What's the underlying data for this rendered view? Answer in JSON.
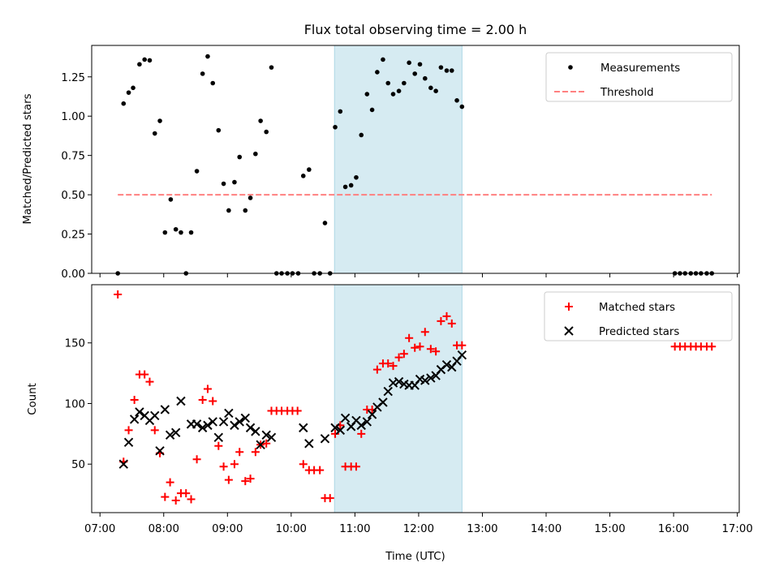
{
  "chart_data": {
    "type": "scatter",
    "title": "Flux total observing time = 2.00 h",
    "xlabel": "Time (UTC)",
    "x_unit": "hours UTC",
    "xlim": [
      6.87,
      17.03
    ],
    "xticks": [
      7,
      8,
      9,
      10,
      11,
      12,
      13,
      14,
      15,
      16,
      17
    ],
    "xtick_labels": [
      "07:00",
      "08:00",
      "09:00",
      "10:00",
      "11:00",
      "12:00",
      "13:00",
      "14:00",
      "15:00",
      "16:00",
      "17:00"
    ],
    "shaded_span": {
      "x0": 10.68,
      "x1": 12.68,
      "color": "#add8e6"
    },
    "panels": [
      {
        "id": "ratio",
        "ylabel": "Matched/Predicted stars",
        "ylim": [
          0,
          1.45
        ],
        "yticks": [
          0,
          0.25,
          0.5,
          0.75,
          1.0,
          1.25
        ],
        "ytick_labels": [
          "0.00",
          "0.25",
          "0.50",
          "0.75",
          "1.00",
          "1.25"
        ],
        "legend_position": "top-right",
        "series": [
          {
            "name": "Measurements",
            "marker": "dot",
            "color": "#000000",
            "points": [
              [
                7.28,
                0.0
              ],
              [
                7.37,
                1.08
              ],
              [
                7.45,
                1.15
              ],
              [
                7.52,
                1.18
              ],
              [
                7.62,
                1.33
              ],
              [
                7.7,
                1.36
              ],
              [
                7.78,
                1.355
              ],
              [
                7.86,
                0.89
              ],
              [
                7.94,
                0.97
              ],
              [
                8.02,
                0.26
              ],
              [
                8.11,
                0.47
              ],
              [
                8.19,
                0.28
              ],
              [
                8.27,
                0.26
              ],
              [
                8.35,
                0.0
              ],
              [
                8.43,
                0.26
              ],
              [
                8.52,
                0.65
              ],
              [
                8.61,
                1.27
              ],
              [
                8.69,
                1.38
              ],
              [
                8.77,
                1.21
              ],
              [
                8.86,
                0.91
              ],
              [
                8.94,
                0.57
              ],
              [
                9.02,
                0.4
              ],
              [
                9.11,
                0.58
              ],
              [
                9.19,
                0.74
              ],
              [
                9.28,
                0.4
              ],
              [
                9.36,
                0.48
              ],
              [
                9.44,
                0.76
              ],
              [
                9.52,
                0.97
              ],
              [
                9.61,
                0.9
              ],
              [
                9.69,
                1.31
              ],
              [
                9.77,
                0.0
              ],
              [
                9.85,
                0.0
              ],
              [
                9.94,
                0.0
              ],
              [
                10.02,
                0.0
              ],
              [
                10.11,
                0.0
              ],
              [
                10.19,
                0.62
              ],
              [
                10.28,
                0.66
              ],
              [
                10.36,
                0.0
              ],
              [
                10.45,
                0.0
              ],
              [
                10.53,
                0.32
              ],
              [
                10.61,
                0.0
              ],
              [
                10.69,
                0.93
              ],
              [
                10.77,
                1.03
              ],
              [
                10.85,
                0.55
              ],
              [
                10.94,
                0.56
              ],
              [
                11.02,
                0.61
              ],
              [
                11.1,
                0.88
              ],
              [
                11.19,
                1.14
              ],
              [
                11.27,
                1.04
              ],
              [
                11.35,
                1.28
              ],
              [
                11.44,
                1.36
              ],
              [
                11.52,
                1.21
              ],
              [
                11.6,
                1.14
              ],
              [
                11.69,
                1.16
              ],
              [
                11.77,
                1.21
              ],
              [
                11.85,
                1.34
              ],
              [
                11.94,
                1.27
              ],
              [
                12.02,
                1.33
              ],
              [
                12.1,
                1.24
              ],
              [
                12.19,
                1.18
              ],
              [
                12.27,
                1.16
              ],
              [
                12.35,
                1.31
              ],
              [
                12.44,
                1.29
              ],
              [
                12.52,
                1.29
              ],
              [
                12.6,
                1.1
              ],
              [
                12.68,
                1.06
              ],
              [
                16.02,
                0.0
              ],
              [
                16.1,
                0.0
              ],
              [
                16.18,
                0.0
              ],
              [
                16.27,
                0.0
              ],
              [
                16.35,
                0.0
              ],
              [
                16.43,
                0.0
              ],
              [
                16.52,
                0.0
              ],
              [
                16.6,
                0.0
              ]
            ]
          },
          {
            "name": "Threshold",
            "marker": "dashed-line",
            "color": "#ff8080",
            "x": [
              7.28,
              16.6
            ],
            "value": 0.5
          }
        ]
      },
      {
        "id": "counts",
        "ylabel": "Count",
        "ylim": [
          10,
          198
        ],
        "yticks": [
          50,
          100,
          150
        ],
        "ytick_labels": [
          "50",
          "100",
          "150"
        ],
        "legend_position": "top-right",
        "series": [
          {
            "name": "Matched stars",
            "marker": "plus",
            "color": "#ff0000",
            "points": [
              [
                7.28,
                190
              ],
              [
                7.37,
                52
              ],
              [
                7.45,
                78
              ],
              [
                7.54,
                103
              ],
              [
                7.62,
                124
              ],
              [
                7.7,
                124
              ],
              [
                7.78,
                118
              ],
              [
                7.86,
                78
              ],
              [
                7.94,
                59
              ],
              [
                8.02,
                23
              ],
              [
                8.1,
                35
              ],
              [
                8.19,
                20
              ],
              [
                8.27,
                26
              ],
              [
                8.35,
                26
              ],
              [
                8.43,
                21
              ],
              [
                8.52,
                54
              ],
              [
                8.61,
                103
              ],
              [
                8.69,
                112
              ],
              [
                8.77,
                102
              ],
              [
                8.86,
                65
              ],
              [
                8.94,
                48
              ],
              [
                9.02,
                37
              ],
              [
                9.11,
                50
              ],
              [
                9.19,
                60
              ],
              [
                9.28,
                36
              ],
              [
                9.36,
                38
              ],
              [
                9.44,
                60
              ],
              [
                9.52,
                66
              ],
              [
                9.61,
                67
              ],
              [
                9.69,
                94
              ],
              [
                9.77,
                94
              ],
              [
                9.85,
                94
              ],
              [
                9.94,
                94
              ],
              [
                10.02,
                94
              ],
              [
                10.1,
                94
              ],
              [
                10.19,
                50
              ],
              [
                10.28,
                45
              ],
              [
                10.36,
                45
              ],
              [
                10.45,
                45
              ],
              [
                10.53,
                22
              ],
              [
                10.61,
                22
              ],
              [
                10.69,
                75
              ],
              [
                10.77,
                82
              ],
              [
                10.85,
                48
              ],
              [
                10.94,
                48
              ],
              [
                11.02,
                48
              ],
              [
                11.1,
                75
              ],
              [
                11.19,
                95
              ],
              [
                11.27,
                95
              ],
              [
                11.35,
                128
              ],
              [
                11.44,
                133
              ],
              [
                11.52,
                133
              ],
              [
                11.6,
                131
              ],
              [
                11.69,
                138
              ],
              [
                11.77,
                141
              ],
              [
                11.85,
                154
              ],
              [
                11.94,
                146
              ],
              [
                12.02,
                147
              ],
              [
                12.1,
                159
              ],
              [
                12.19,
                145
              ],
              [
                12.27,
                143
              ],
              [
                12.35,
                168
              ],
              [
                12.44,
                172
              ],
              [
                12.52,
                166
              ],
              [
                12.6,
                148
              ],
              [
                12.68,
                148
              ],
              [
                16.02,
                147
              ],
              [
                16.1,
                147
              ],
              [
                16.18,
                147
              ],
              [
                16.27,
                147
              ],
              [
                16.35,
                147
              ],
              [
                16.43,
                147
              ],
              [
                16.52,
                147
              ],
              [
                16.6,
                147
              ]
            ]
          },
          {
            "name": "Predicted stars",
            "marker": "x",
            "color": "#000000",
            "points": [
              [
                7.37,
                50
              ],
              [
                7.45,
                68
              ],
              [
                7.54,
                87
              ],
              [
                7.62,
                93
              ],
              [
                7.7,
                90
              ],
              [
                7.78,
                86
              ],
              [
                7.86,
                90
              ],
              [
                7.94,
                61
              ],
              [
                8.02,
                95
              ],
              [
                8.1,
                74
              ],
              [
                8.19,
                76
              ],
              [
                8.27,
                102
              ],
              [
                8.43,
                83
              ],
              [
                8.52,
                83
              ],
              [
                8.61,
                80
              ],
              [
                8.69,
                82
              ],
              [
                8.77,
                85
              ],
              [
                8.86,
                72
              ],
              [
                8.94,
                85
              ],
              [
                9.02,
                92
              ],
              [
                9.11,
                82
              ],
              [
                9.19,
                85
              ],
              [
                9.28,
                88
              ],
              [
                9.36,
                80
              ],
              [
                9.44,
                77
              ],
              [
                9.52,
                66
              ],
              [
                9.61,
                74
              ],
              [
                9.69,
                72
              ],
              [
                10.19,
                80
              ],
              [
                10.28,
                67
              ],
              [
                10.53,
                71
              ],
              [
                10.69,
                80
              ],
              [
                10.77,
                78
              ],
              [
                10.85,
                88
              ],
              [
                10.94,
                81
              ],
              [
                11.02,
                86
              ],
              [
                11.1,
                82
              ],
              [
                11.19,
                85
              ],
              [
                11.27,
                91
              ],
              [
                11.35,
                97
              ],
              [
                11.44,
                101
              ],
              [
                11.52,
                110
              ],
              [
                11.6,
                117
              ],
              [
                11.69,
                118
              ],
              [
                11.77,
                116
              ],
              [
                11.85,
                115
              ],
              [
                11.94,
                115
              ],
              [
                12.02,
                120
              ],
              [
                12.1,
                119
              ],
              [
                12.19,
                121
              ],
              [
                12.27,
                123
              ],
              [
                12.35,
                128
              ],
              [
                12.44,
                132
              ],
              [
                12.52,
                130
              ],
              [
                12.6,
                135
              ],
              [
                12.68,
                140
              ]
            ]
          }
        ]
      }
    ]
  }
}
